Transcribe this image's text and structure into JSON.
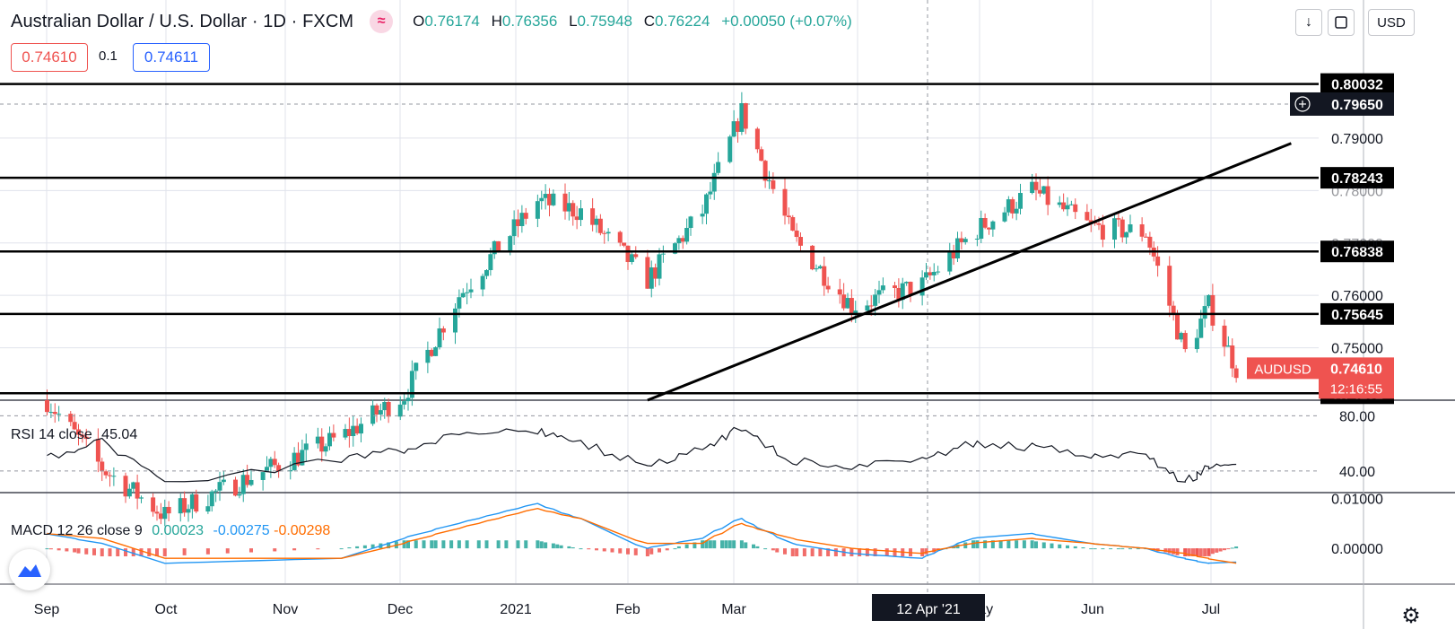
{
  "header": {
    "symbol": "Australian Dollar / U.S. Dollar · 1D · FXCM",
    "open_label": "O",
    "open": "0.76174",
    "high_label": "H",
    "high": "0.76356",
    "low_label": "L",
    "low": "0.75948",
    "close_label": "C",
    "close": "0.76224",
    "change": "+0.00050 (+0.07%)"
  },
  "trade": {
    "sell": "0.74610",
    "spread": "0.1",
    "buy": "0.74611"
  },
  "toolbar": {
    "currency": "USD",
    "arrow_icon": "arrow-down-icon",
    "fullscreen_icon": "fullscreen-icon"
  },
  "price_axis": {
    "plain_labels": [
      "0.79000",
      "0.76000",
      "0.75000"
    ],
    "partial_labels": [
      "0.78000",
      "0.77000"
    ],
    "top_partial": "0."
  },
  "horizontal_levels": [
    "0.80032",
    "0.78243",
    "0.76838",
    "0.75645",
    "0.74132"
  ],
  "crosshair": {
    "price": "0.79650",
    "date": "12 Apr '21"
  },
  "last_price": {
    "symbol": "AUDUSD",
    "price": "0.74610",
    "countdown": "12:16:55"
  },
  "rsi": {
    "title": "RSI 14 close",
    "value": "45.04",
    "levels": [
      "80.00",
      "40.00"
    ]
  },
  "macd": {
    "title": "MACD 12 26 close 9",
    "histogram": "0.00023",
    "macd": "-0.00275",
    "signal": "-0.00298",
    "levels": [
      "0.01000",
      "0.00000"
    ]
  },
  "time_axis": [
    "Sep",
    "Oct",
    "Nov",
    "Dec",
    "2021",
    "Feb",
    "Mar",
    "May",
    "Jun",
    "Jul"
  ],
  "colors": {
    "up": "#26a69a",
    "down": "#ef5350",
    "macd_line": "#2196f3",
    "signal_line": "#ff6d00"
  },
  "chart_data": {
    "type": "candlestick",
    "instrument": "AUDUSD",
    "timeframe": "1D",
    "ylim": [
      0.74,
      0.803
    ],
    "x": [
      "2020-09-01",
      "2020-09-15",
      "2020-10-01",
      "2020-11-15",
      "2020-12-01",
      "2020-12-15",
      "2021-01-04",
      "2021-01-15",
      "2021-02-01",
      "2021-02-15",
      "2021-02-25",
      "2021-03-10",
      "2021-03-25",
      "2021-04-12",
      "2021-04-25",
      "2021-05-10",
      "2021-05-25",
      "2021-06-08",
      "2021-06-18",
      "2021-06-24",
      "2021-07-01"
    ],
    "close": [
      0.74,
      0.727,
      0.718,
      0.733,
      0.741,
      0.76,
      0.778,
      0.776,
      0.763,
      0.776,
      0.795,
      0.771,
      0.758,
      0.762,
      0.772,
      0.78,
      0.773,
      0.772,
      0.749,
      0.758,
      0.7461
    ],
    "rsi_ylim": [
      25,
      90
    ],
    "rsi": [
      48,
      62,
      32,
      48,
      56,
      66,
      70,
      60,
      45,
      55,
      72,
      48,
      43,
      48,
      60,
      57,
      52,
      52,
      31,
      43,
      45.04
    ],
    "macd_ylim": [
      -0.007,
      0.011
    ],
    "macd_line": [
      0.003,
      0.001,
      -0.003,
      -0.002,
      0.002,
      0.005,
      0.009,
      0.006,
      0.0,
      0.002,
      0.006,
      0.001,
      -0.001,
      -0.002,
      0.002,
      0.003,
      0.001,
      0.0,
      -0.002,
      -0.003,
      -0.00275
    ],
    "signal_line": [
      0.003,
      0.002,
      -0.002,
      -0.002,
      0.001,
      0.004,
      0.008,
      0.006,
      0.001,
      0.001,
      0.005,
      0.002,
      0.0,
      -0.001,
      0.001,
      0.002,
      0.001,
      0.0,
      -0.001,
      -0.002,
      -0.00298
    ],
    "trendline": {
      "from": [
        "2021-02-01",
        0.74
      ],
      "to": [
        "2021-07-15",
        0.789
      ]
    }
  }
}
